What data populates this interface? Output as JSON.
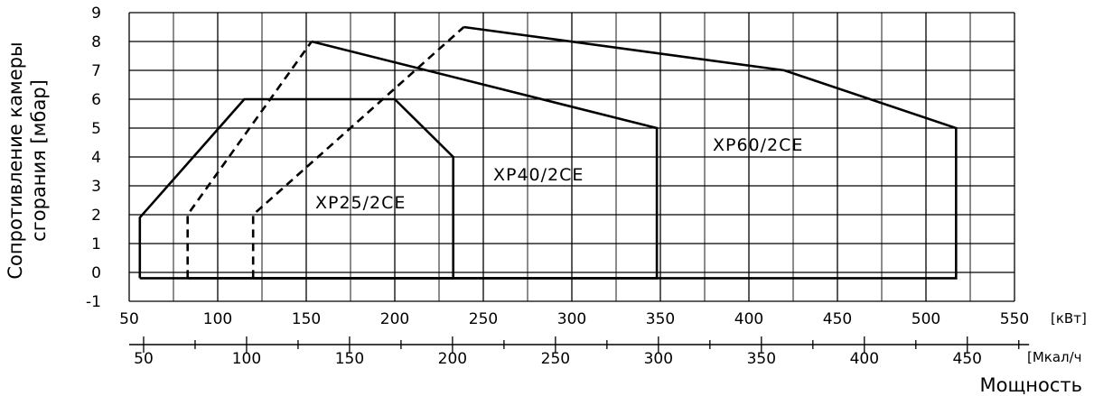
{
  "chart_data": {
    "type": "line",
    "ylabel_lines": [
      "Сопротивление камеры",
      "сгорания [мбар]"
    ],
    "xlabel": "Мощность",
    "x_unit_kw": "[кВт]",
    "x_unit_mcal": "[Мкал/ч",
    "ylim": [
      -1,
      9
    ],
    "y_ticks": [
      "-1",
      "0",
      "1",
      "2",
      "3",
      "4",
      "5",
      "6",
      "7",
      "8",
      "9"
    ],
    "x_kw_lim": [
      50,
      550
    ],
    "x_kw_ticks": [
      "50",
      "100",
      "150",
      "200",
      "250",
      "300",
      "350",
      "400",
      "450",
      "500",
      "550"
    ],
    "x_mcal_ticks": [
      "50",
      "100",
      "150",
      "200",
      "250",
      "300",
      "350",
      "400",
      "450"
    ],
    "x_mcal_values": [
      50,
      100,
      150,
      200,
      250,
      300,
      350,
      400,
      450
    ],
    "grid": true,
    "series": [
      {
        "name": "XP25/2CE",
        "dash": false,
        "points": [
          [
            56,
            -0.2
          ],
          [
            56,
            1.9
          ],
          [
            115,
            6
          ],
          [
            200,
            6
          ],
          [
            233,
            4
          ],
          [
            233,
            -0.2
          ],
          [
            56,
            -0.2
          ]
        ]
      },
      {
        "name": "",
        "dash": true,
        "points": [
          [
            83,
            -0.2
          ],
          [
            83,
            2
          ],
          [
            153,
            8
          ]
        ]
      },
      {
        "name": "XP40/2CE",
        "dash": false,
        "points": [
          [
            153,
            8
          ],
          [
            348,
            5
          ],
          [
            348,
            -0.2
          ],
          [
            83,
            -0.2
          ]
        ]
      },
      {
        "name": "",
        "dash": true,
        "points": [
          [
            120,
            -0.2
          ],
          [
            120,
            2
          ],
          [
            239,
            8.5
          ]
        ]
      },
      {
        "name": "XP60/2CE",
        "dash": false,
        "points": [
          [
            239,
            8.5
          ],
          [
            420,
            7
          ],
          [
            517,
            5
          ],
          [
            517,
            -0.2
          ],
          [
            120,
            -0.2
          ]
        ]
      }
    ]
  }
}
